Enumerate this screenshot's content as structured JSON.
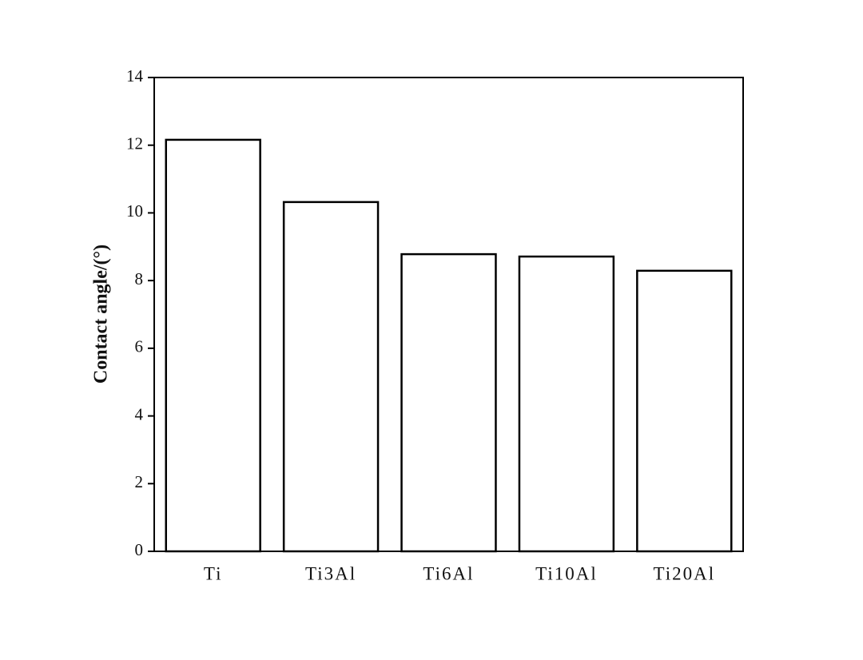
{
  "chart_data": {
    "type": "bar",
    "y_label": "Contact angle/(°)",
    "categories": [
      "Ti",
      "Ti3Al",
      "Ti6Al",
      "Ti10Al",
      "Ti20Al"
    ],
    "values": [
      12.16,
      10.32,
      8.78,
      8.71,
      8.29
    ],
    "color": "#ffffff",
    "edge_color": "#000000",
    "ylim": [
      0,
      14
    ],
    "yticks": [
      0,
      2,
      4,
      6,
      8,
      10,
      12,
      14
    ],
    "grid": false
  }
}
